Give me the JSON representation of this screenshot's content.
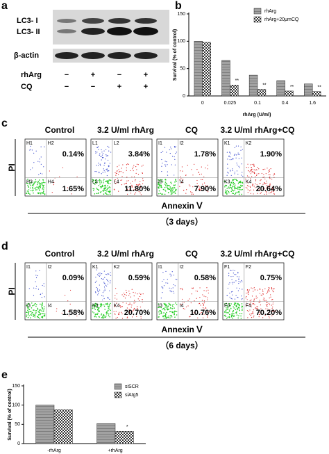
{
  "panel_labels": [
    "a",
    "b",
    "c",
    "d",
    "e"
  ],
  "blot": {
    "bands": [
      "LC3- I",
      "LC3- II",
      "β-actin"
    ],
    "rows": [
      {
        "label": "rhArg",
        "signs": [
          "−",
          "+",
          "−",
          "+"
        ]
      },
      {
        "label": "CQ",
        "signs": [
          "−",
          "−",
          "+",
          "+"
        ]
      }
    ]
  },
  "flow": [
    {
      "y_label": "PI",
      "x_label": "Annexin Ⅴ",
      "duration": "（3 days）",
      "plots": [
        {
          "title": "Control",
          "quadrants": [
            "H1",
            "H2",
            "H3",
            "H4"
          ],
          "upper_right": "0.14%",
          "lower_right": "1.65%"
        },
        {
          "title": "3.2 U/ml rhArg",
          "quadrants": [
            "L1",
            "L2",
            "L3",
            "L4"
          ],
          "upper_right": "3.84%",
          "lower_right": "11.80%"
        },
        {
          "title": "CQ",
          "quadrants": [
            "I1",
            "I2",
            "I3",
            "I4"
          ],
          "upper_right": "1.78%",
          "lower_right": "7.90%"
        },
        {
          "title": "3.2 U/ml rhArg+CQ",
          "quadrants": [
            "K1",
            "K2",
            "K3",
            "K4"
          ],
          "upper_right": "1.90%",
          "lower_right": "20.64%"
        }
      ]
    },
    {
      "y_label": "PI",
      "x_label": "Annexin Ⅴ",
      "duration": "（6 days）",
      "plots": [
        {
          "title": "Control",
          "quadrants": [
            "I1",
            "I2",
            "I3",
            "I4"
          ],
          "upper_right": "0.09%",
          "lower_right": "1.58%"
        },
        {
          "title": "3.2 U/ml rhArg",
          "quadrants": [
            "K1",
            "K2",
            "K3",
            "K4"
          ],
          "upper_right": "0.59%",
          "lower_right": "20.70%"
        },
        {
          "title": "CQ",
          "quadrants": [
            "I1",
            "I2",
            "I3",
            "I4"
          ],
          "upper_right": "0.58%",
          "lower_right": "10.76%"
        },
        {
          "title": "3.2 U/ml rhArg+CQ",
          "quadrants": [
            "F1",
            "F2",
            "F3",
            "F4"
          ],
          "upper_right": "0.75%",
          "lower_right": "70.20%"
        }
      ]
    }
  ],
  "chart_data": [
    {
      "type": "bar",
      "y_label": "Survival (% of control)",
      "x_label": "rhArg (U/ml)",
      "categories": [
        "0",
        "0.025",
        "0.1",
        "0.4",
        "1.6"
      ],
      "series": [
        {
          "name": "rhArg",
          "color": "#555555",
          "values": [
            100,
            65,
            38,
            28,
            22
          ]
        },
        {
          "name": "rhArg+20μmCQ",
          "color": "#333333",
          "values": [
            98,
            20,
            12,
            9,
            8
          ],
          "annotations": [
            null,
            "**",
            "**",
            "**",
            "**"
          ]
        }
      ],
      "ylim": [
        0,
        150
      ],
      "yticks": [
        0,
        50,
        100,
        150
      ]
    },
    {
      "type": "bar",
      "y_label": "Survival (% of control)",
      "categories": [
        "-rhArg",
        "+rhArg"
      ],
      "series": [
        {
          "name": "siSCR",
          "color": "#555555",
          "values": [
            100,
            52
          ]
        },
        {
          "name": "siAtg5",
          "color": "#333333",
          "values": [
            88,
            32
          ],
          "annotations": [
            null,
            "*"
          ]
        }
      ],
      "ylim": [
        0,
        150
      ],
      "yticks": [
        0,
        50,
        100,
        150
      ]
    }
  ]
}
